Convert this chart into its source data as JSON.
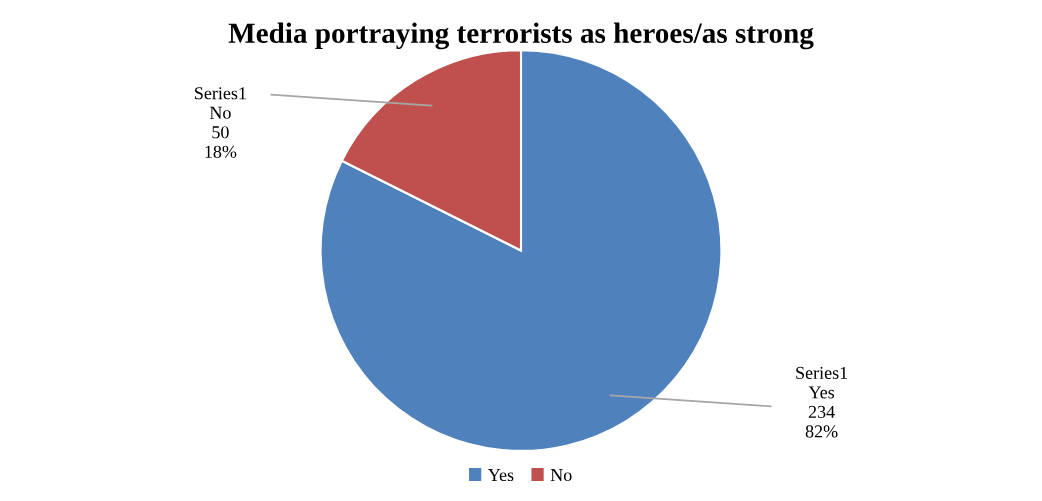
{
  "chart_data": {
    "type": "pie",
    "title": "Media portraying terrorists as heroes/as strong",
    "categories": [
      "Yes",
      "No"
    ],
    "series": [
      {
        "name": "Series1",
        "values": [
          234,
          50
        ]
      }
    ],
    "colors": [
      "#4f81bd",
      "#c0504d"
    ],
    "data_labels": true,
    "value_labels": [
      "82%",
      "18%"
    ],
    "legend": "bottom"
  }
}
